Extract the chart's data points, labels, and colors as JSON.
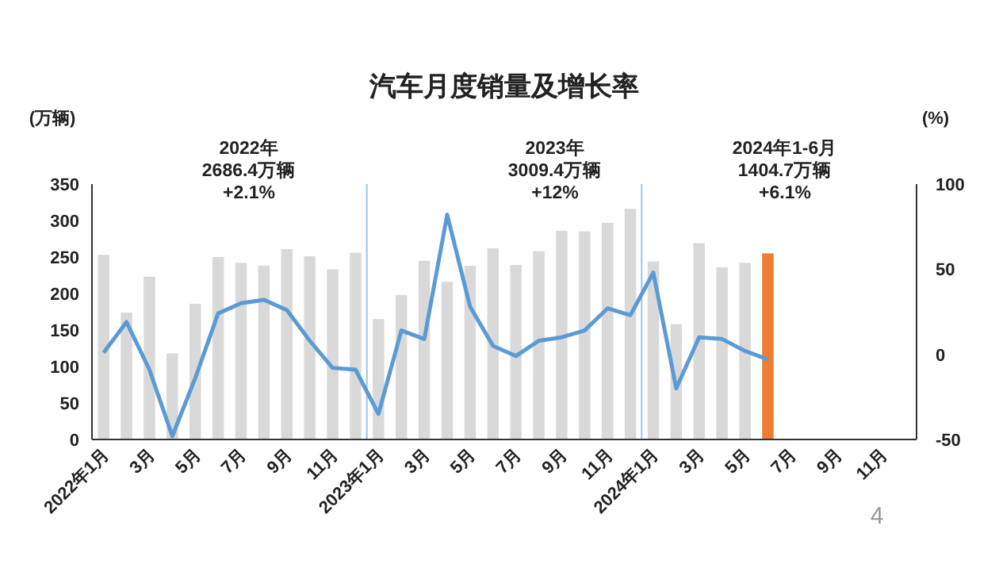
{
  "chart_data": {
    "type": "bar",
    "title": "汽车月度销量及增长率",
    "ylabel": "(万辆)",
    "y2label": "(%)",
    "annotations": [
      "2022年\n2686.4万辆\n+2.1%",
      "2023年\n3009.4万辆\n+12%",
      "2024年1-6月\n1404.7万辆\n+6.1%",
      "4"
    ],
    "x": [
      "2022-01",
      "2022-02",
      "2022-03",
      "2022-04",
      "2022-05",
      "2022-06",
      "2022-07",
      "2022-08",
      "2022-09",
      "2022-10",
      "2022-11",
      "2022-12",
      "2023-01",
      "2023-02",
      "2023-03",
      "2023-04",
      "2023-05",
      "2023-06",
      "2023-07",
      "2023-08",
      "2023-09",
      "2023-10",
      "2023-11",
      "2023-12",
      "2024-01",
      "2024-02",
      "2024-03",
      "2024-04",
      "2024-05",
      "2024-06"
    ],
    "series": [
      {
        "colors": [
          "#d9d9d9",
          "#d9d9d9",
          "#d9d9d9",
          "#d9d9d9",
          "#d9d9d9",
          "#d9d9d9",
          "#d9d9d9",
          "#d9d9d9",
          "#d9d9d9",
          "#d9d9d9",
          "#d9d9d9",
          "#d9d9d9",
          "#d9d9d9",
          "#d9d9d9",
          "#d9d9d9",
          "#d9d9d9",
          "#d9d9d9",
          "#d9d9d9",
          "#d9d9d9",
          "#d9d9d9",
          "#d9d9d9",
          "#d9d9d9",
          "#d9d9d9",
          "#d9d9d9",
          "#d9d9d9",
          "#d9d9d9",
          "#d9d9d9",
          "#d9d9d9",
          "#d9d9d9",
          "#ed7d31"
        ],
        "values": [
          253,
          174,
          223,
          118,
          186,
          250,
          242,
          238,
          261,
          251,
          233,
          256,
          165,
          198,
          245,
          216,
          238,
          262,
          239,
          258,
          286,
          285,
          297,
          316,
          244,
          158,
          269,
          236,
          242,
          255
        ]
      },
      {
        "type": "line",
        "axis": "y2",
        "color": "#5b9bd5",
        "values": [
          1,
          19,
          -9,
          -48,
          -14,
          24,
          30,
          32,
          26,
          8,
          -8,
          -9,
          -35,
          14,
          9,
          82,
          28,
          5,
          -1,
          8,
          10,
          14,
          27,
          23,
          48,
          -20,
          10,
          9,
          2,
          -3
        ]
      }
    ],
    "ylim": [
      0,
      350
    ],
    "yticks": [
      0,
      50,
      100,
      150,
      200,
      250,
      300,
      350
    ],
    "y2lim": [
      -50,
      100
    ],
    "y2ticks": [
      -50,
      0,
      50,
      100
    ],
    "xlim": [
      "2021-12-16",
      "2024-12-16"
    ],
    "xticks": [
      {
        "value": "2022-01",
        "label": "2022年1月"
      },
      {
        "value": "2022-03",
        "label": "3月"
      },
      {
        "value": "2022-05",
        "label": "5月"
      },
      {
        "value": "2022-07",
        "label": "7月"
      },
      {
        "value": "2022-09",
        "label": "9月"
      },
      {
        "value": "2022-11",
        "label": "11月"
      },
      {
        "value": "2023-01",
        "label": "2023年1月"
      },
      {
        "value": "2023-03",
        "label": "3月"
      },
      {
        "value": "2023-05",
        "label": "5月"
      },
      {
        "value": "2023-07",
        "label": "7月"
      },
      {
        "value": "2023-09",
        "label": "9月"
      },
      {
        "value": "2023-11",
        "label": "11月"
      },
      {
        "value": "2024-01",
        "label": "2024年1月"
      },
      {
        "value": "2024-03",
        "label": "3月"
      },
      {
        "value": "2024-05",
        "label": "5月"
      },
      {
        "value": "2024-07",
        "label": "7月"
      },
      {
        "value": "2024-09",
        "label": "9月"
      },
      {
        "value": "2024-11",
        "label": "11月"
      }
    ],
    "ref_lines": [
      {
        "axis": "x",
        "value": "2022-12-16",
        "color": "#9dc3e6"
      },
      {
        "axis": "x",
        "value": "2023-12-16",
        "color": "#9dc3e6"
      }
    ],
    "marker": "none",
    "line_style": "solid"
  }
}
